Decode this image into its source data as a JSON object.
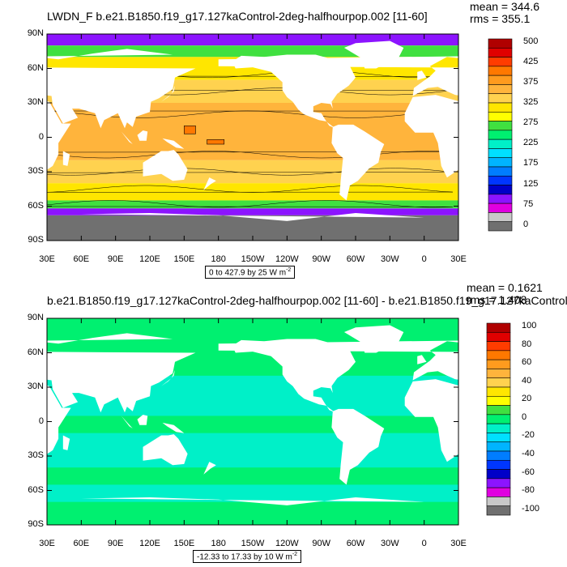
{
  "chart_data": [
    {
      "type": "heatmap",
      "title": "LWDN_F b.e21.B1850.f19_g17.127kaControl-2deg-halfhourpop.002 [11-60]",
      "stats": {
        "mean": "mean = 344.6",
        "rms": "rms = 355.1"
      },
      "ylabels": [
        "90N",
        "60N",
        "30N",
        "0",
        "30S",
        "60S",
        "90S"
      ],
      "xlabels": [
        "30E",
        "60E",
        "90E",
        "120E",
        "150E",
        "180",
        "150W",
        "120W",
        "90W",
        "60W",
        "30W",
        "0",
        "30E"
      ],
      "info": "0 to 427.9 by 25  W m",
      "info_sup": "-2",
      "colorbar_labels": [
        "500",
        "425",
        "375",
        "325",
        "275",
        "225",
        "175",
        "125",
        "75",
        "0"
      ],
      "colorbar_levels": [
        500,
        475,
        450,
        425,
        400,
        375,
        350,
        325,
        300,
        275,
        250,
        225,
        200,
        175,
        150,
        125,
        100,
        75,
        50,
        25,
        0
      ],
      "colors": [
        "#b00000",
        "#e00000",
        "#ff3c00",
        "#ff7800",
        "#ff9b1e",
        "#ffb43c",
        "#ffd24f",
        "#ffe600",
        "#ffff00",
        "#40e040",
        "#00f070",
        "#00f0c8",
        "#00e0ff",
        "#00b4ff",
        "#007dff",
        "#0036ff",
        "#0000c8",
        "#8c14ff",
        "#e000e0",
        "#c8c8c8",
        "#707070"
      ],
      "regions": {
        "ocean_tropical": 375,
        "ocean_mid": 325,
        "ocean_high": 275,
        "polar": 75,
        "warm_pool": 425
      }
    },
    {
      "type": "heatmap",
      "title": "b.e21.B1850.f19_g17.127kaControl-2deg-halfhourpop.002 [11-60] - b.e21.B1850.f19_g17.127kaControl-",
      "stats": {
        "mean": "mean = 0.1621",
        "rms": "rms = 1.408"
      },
      "ylabels": [
        "90N",
        "60N",
        "30N",
        "0",
        "30S",
        "60S",
        "90S"
      ],
      "xlabels": [
        "30E",
        "60E",
        "90E",
        "120E",
        "150E",
        "180",
        "150W",
        "120W",
        "90W",
        "60W",
        "30W",
        "0",
        "30E"
      ],
      "info": "-12.33 to 17.33 by 10  W m",
      "info_sup": "-2",
      "colorbar_labels": [
        "100",
        "80",
        "60",
        "40",
        "20",
        "0",
        "-20",
        "-40",
        "-60",
        "-80",
        "-100"
      ],
      "colorbar_levels": [
        100,
        90,
        80,
        70,
        60,
        50,
        40,
        30,
        20,
        10,
        0,
        -10,
        -20,
        -30,
        -40,
        -50,
        -60,
        -70,
        -80,
        -90,
        -100
      ],
      "colors": [
        "#b00000",
        "#e00000",
        "#ff3c00",
        "#ff7800",
        "#ff9b1e",
        "#ffb43c",
        "#ffd24f",
        "#ffe600",
        "#ffff00",
        "#40e040",
        "#00f070",
        "#00f0c8",
        "#00e0ff",
        "#00b4ff",
        "#007dff",
        "#0036ff",
        "#0000c8",
        "#8c14ff",
        "#e000e0",
        "#c8c8c8",
        "#707070"
      ],
      "regions": {
        "ocean_positive": 5,
        "ocean_negative": -5
      }
    }
  ]
}
